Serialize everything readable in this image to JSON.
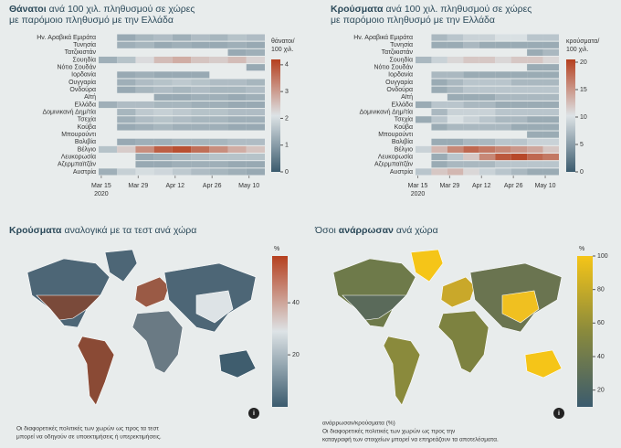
{
  "chart_data": [
    {
      "type": "heatmap",
      "title": [
        {
          "text": "Θάνατοι",
          "bold": true
        },
        {
          "text": "ανά 100 χιλ. πληθυσμού σε χώρες",
          "bold": false
        }
      ],
      "subtitle": "με παρόμοιο πληθυσμό με την Ελλάδα",
      "rows": [
        "Ην. Αραβικά Εμιράτα",
        "Τυνησία",
        "Τατζικιστάν",
        "Σουηδία",
        "Νότιο Σουδάν",
        "Ιορδανία",
        "Ουγγαρία",
        "Ονδούρα",
        "Αϊτή",
        "Ελλάδα",
        "Δομινικανή Δημ/τία",
        "Τσεχία",
        "Κούβα",
        "Μπουρούντι",
        "Βολιβία",
        "Βέλγιο",
        "Λευκορωσία",
        "Αζερμπαϊτζάν",
        "Αυστρία"
      ],
      "x": [
        "2020-03-14",
        "2020-03-21",
        "2020-03-28",
        "2020-04-04",
        "2020-04-11",
        "2020-04-18",
        "2020-04-25",
        "2020-05-02",
        "2020-05-09"
      ],
      "xlim": [
        "2020-03-14",
        "2020-05-16"
      ],
      "xticks": [
        {
          "value": "2020-03-15",
          "label": "Mar 15",
          "year": "2020"
        },
        {
          "value": "2020-03-29",
          "label": "Mar 29"
        },
        {
          "value": "2020-04-12",
          "label": "Apr 12"
        },
        {
          "value": "2020-04-26",
          "label": "Apr 26"
        },
        {
          "value": "2020-05-10",
          "label": "May 10"
        }
      ],
      "values": [
        [
          null,
          1.2,
          1.4,
          1.5,
          1.3,
          1.5,
          1.4,
          1.6,
          1.5
        ],
        [
          null,
          1.3,
          1.4,
          1.2,
          1.3,
          1.2,
          1.2,
          1.3,
          1.2
        ],
        [
          null,
          null,
          null,
          null,
          null,
          null,
          null,
          1.2,
          1.3
        ],
        [
          1.3,
          1.6,
          2.2,
          2.6,
          2.8,
          2.5,
          2.4,
          2.6,
          2.3
        ],
        [
          null,
          null,
          null,
          null,
          null,
          null,
          null,
          null,
          1.2
        ],
        [
          null,
          1.2,
          1.3,
          1.2,
          1.2,
          1.2,
          null,
          null,
          null
        ],
        [
          null,
          1.3,
          1.5,
          1.6,
          1.7,
          1.6,
          1.5,
          1.5,
          1.4
        ],
        [
          null,
          1.2,
          1.4,
          1.5,
          1.4,
          1.5,
          1.4,
          1.4,
          1.5
        ],
        [
          null,
          null,
          null,
          1.2,
          1.2,
          1.3,
          1.3,
          1.2,
          1.3
        ],
        [
          1.3,
          1.5,
          1.5,
          1.4,
          1.4,
          1.3,
          1.3,
          1.2,
          1.2
        ],
        [
          null,
          1.4,
          1.7,
          1.8,
          1.7,
          1.6,
          1.6,
          1.5,
          1.5
        ],
        [
          null,
          1.3,
          1.5,
          1.6,
          1.5,
          1.4,
          1.4,
          1.3,
          1.3
        ],
        [
          null,
          1.2,
          1.3,
          1.4,
          1.3,
          1.3,
          1.3,
          1.2,
          1.2
        ],
        [
          null,
          null,
          null,
          null,
          null,
          null,
          null,
          null,
          null
        ],
        [
          null,
          1.2,
          1.3,
          1.3,
          1.4,
          1.4,
          1.4,
          1.5,
          1.5
        ],
        [
          1.6,
          2.4,
          3.2,
          3.8,
          4.0,
          3.6,
          3.2,
          2.8,
          2.5
        ],
        [
          null,
          null,
          1.2,
          1.3,
          1.4,
          1.5,
          1.6,
          1.6,
          1.6
        ],
        [
          null,
          null,
          1.2,
          1.2,
          1.3,
          1.3,
          1.3,
          1.2,
          1.2
        ],
        [
          1.3,
          1.8,
          2.0,
          1.9,
          1.7,
          1.5,
          1.4,
          1.3,
          1.2
        ]
      ],
      "zlim": [
        0,
        4.2
      ],
      "zticks": [
        0,
        1,
        2,
        3,
        4
      ],
      "zlabel": [
        "θάνατοι/",
        "100 χιλ."
      ],
      "colorscale": [
        "#3b5b6e",
        "#dde3e6",
        "#b5401f"
      ]
    },
    {
      "type": "heatmap",
      "title": [
        {
          "text": "Κρούσματα",
          "bold": true
        },
        {
          "text": "ανά 100 χιλ. πληθυσμού σε χώρες",
          "bold": false
        }
      ],
      "subtitle": "με παρόμοιο πληθυσμό με την Ελλάδα",
      "rows": [
        "Ην. Αραβικά Εμιράτα",
        "Τυνησία",
        "Τατζικιστάν",
        "Σουηδία",
        "Νότιο Σουδάν",
        "Ιορδανία",
        "Ουγγαρία",
        "Ονδούρα",
        "Αϊτή",
        "Ελλάδα",
        "Δομινικανή Δημ/τία",
        "Τσεχία",
        "Κούβα",
        "Μπουρούντι",
        "Βολιβία",
        "Βέλγιο",
        "Λευκορωσία",
        "Αζερμπαϊτζάν",
        "Αυστρία"
      ],
      "x": [
        "2020-03-14",
        "2020-03-21",
        "2020-03-28",
        "2020-04-04",
        "2020-04-11",
        "2020-04-18",
        "2020-04-25",
        "2020-05-02",
        "2020-05-09"
      ],
      "xlim": [
        "2020-03-14",
        "2020-05-16"
      ],
      "xticks": [
        {
          "value": "2020-03-15",
          "label": "Mar 15",
          "year": "2020"
        },
        {
          "value": "2020-03-29",
          "label": "Mar 29"
        },
        {
          "value": "2020-04-12",
          "label": "Apr 12"
        },
        {
          "value": "2020-04-26",
          "label": "Apr 26"
        },
        {
          "value": "2020-05-10",
          "label": "May 10"
        }
      ],
      "values": [
        [
          null,
          7,
          8,
          9,
          9,
          10,
          10,
          8,
          8
        ],
        [
          null,
          6,
          6,
          7,
          6,
          6,
          6,
          6,
          6
        ],
        [
          null,
          null,
          null,
          null,
          null,
          null,
          null,
          6,
          7
        ],
        [
          7,
          9,
          11,
          12,
          12,
          11,
          12,
          12,
          11
        ],
        [
          null,
          null,
          null,
          null,
          null,
          null,
          null,
          6,
          6
        ],
        [
          null,
          7,
          7,
          6,
          6,
          6,
          6,
          6,
          6
        ],
        [
          null,
          6,
          7,
          8,
          8,
          8,
          7,
          7,
          7
        ],
        [
          null,
          6,
          7,
          8,
          8,
          8,
          8,
          8,
          8
        ],
        [
          null,
          null,
          6,
          6,
          6,
          7,
          7,
          7,
          7
        ],
        [
          6,
          8,
          8,
          7,
          7,
          6,
          6,
          6,
          6
        ],
        [
          null,
          7,
          9,
          9,
          9,
          8,
          8,
          8,
          8
        ],
        [
          6,
          8,
          10,
          9,
          8,
          7,
          7,
          6,
          6
        ],
        [
          null,
          6,
          7,
          7,
          7,
          7,
          6,
          6,
          6
        ],
        [
          null,
          null,
          null,
          null,
          null,
          null,
          null,
          6,
          6
        ],
        [
          null,
          6,
          6,
          7,
          7,
          8,
          8,
          9,
          9
        ],
        [
          9,
          13,
          16,
          18,
          17,
          16,
          15,
          14,
          12
        ],
        [
          null,
          6,
          8,
          12,
          16,
          19,
          20,
          18,
          17
        ],
        [
          null,
          6,
          7,
          7,
          7,
          8,
          8,
          8,
          8
        ],
        [
          8,
          12,
          13,
          11,
          9,
          8,
          7,
          6,
          6
        ]
      ],
      "zlim": [
        0,
        20.5
      ],
      "zticks": [
        0,
        5,
        10,
        15,
        20
      ],
      "zlabel": [
        "κρούσματα/",
        "100 χιλ."
      ],
      "colorscale": [
        "#3b5b6e",
        "#dde3e6",
        "#b5401f"
      ]
    },
    {
      "type": "choropleth",
      "title": [
        {
          "text": "Κρούσματα",
          "bold": true
        },
        {
          "text": "αναλογικά με τα τεστ ανά χώρα",
          "bold": false
        }
      ],
      "zlim": [
        0,
        58
      ],
      "zticks": [
        20,
        40
      ],
      "zlabel": "%",
      "colorscale": [
        "#3b5b6e",
        "#dde3e6",
        "#b5401f"
      ],
      "notes": [
        "Οι διαφορετικές πολιτικές των χωρών ως προς τα τεστ",
        "μπορεί να οδηγούν σε υποεκτιμήσεις ή υπερεκτιμήσεις."
      ]
    },
    {
      "type": "choropleth",
      "title": [
        {
          "text": "Όσοι",
          "bold": false
        },
        {
          "text": "ανάρρωσαν",
          "bold": true
        },
        {
          "text": "ανά χώρα",
          "bold": false
        }
      ],
      "zlim": [
        10,
        100
      ],
      "zticks": [
        20,
        40,
        60,
        80,
        100
      ],
      "zlabel": "%",
      "colorscale": [
        "#3b5b6e",
        "#8a8a3c",
        "#f5c518"
      ],
      "notes": [
        "ανάρρωσαν/κρούσματα (%)",
        "Οι διαφορετικές πολιτικές των χωρών ως προς την",
        "καταγραφή των στοιχείων μπορεί να επηρεάζουν τα αποτελέσματα."
      ]
    }
  ]
}
